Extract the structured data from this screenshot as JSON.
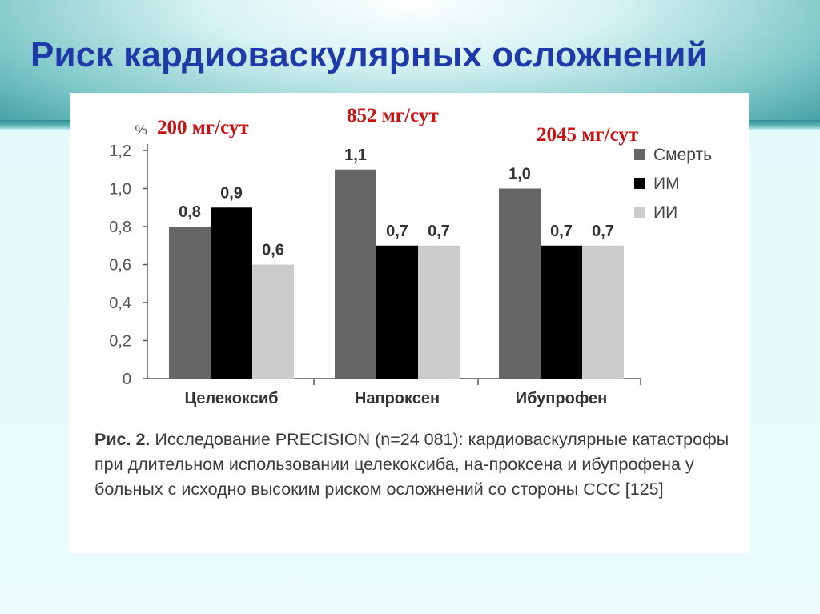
{
  "slide": {
    "title": "Риск кардиоваскулярных осложнений",
    "doses": [
      "200 мг/сут",
      "852 мг/сут",
      "2045 мг/сут"
    ]
  },
  "caption": {
    "head": "Рис. 2.",
    "body": "Исследование PRECISION (n=24 081): кардиоваскулярные катастрофы при длительном использовании целекоксиба, на-проксена и ибупрофена у больных с исходно высоким риском осложнений со стороны ССС [125]"
  },
  "chart_data": {
    "type": "bar",
    "y_unit": "%",
    "categories": [
      "Целекоксиб",
      "Напроксен",
      "Ибупрофен"
    ],
    "series": [
      {
        "name": "Смерть",
        "values": [
          0.8,
          1.1,
          1.0
        ],
        "labels": [
          "0,8",
          "1,1",
          "1,0"
        ],
        "color": "#666666"
      },
      {
        "name": "ИМ",
        "values": [
          0.9,
          0.7,
          0.7
        ],
        "labels": [
          "0,9",
          "0,7",
          "0,7"
        ],
        "color": "#000000"
      },
      {
        "name": "ИИ",
        "values": [
          0.6,
          0.7,
          0.7
        ],
        "labels": [
          "0,6",
          "0,7",
          "0,7"
        ],
        "color": "#cccccc"
      }
    ],
    "yticks": [
      {
        "value": 0,
        "label": "0"
      },
      {
        "value": 0.2,
        "label": "0,2"
      },
      {
        "value": 0.4,
        "label": "0,4"
      },
      {
        "value": 0.6,
        "label": "0,6"
      },
      {
        "value": 0.8,
        "label": "0,8"
      },
      {
        "value": 1.0,
        "label": "1,0"
      },
      {
        "value": 1.2,
        "label": "1,2"
      }
    ],
    "ylim": [
      0,
      1.2
    ],
    "legend_position": "top-right",
    "grid": false
  }
}
